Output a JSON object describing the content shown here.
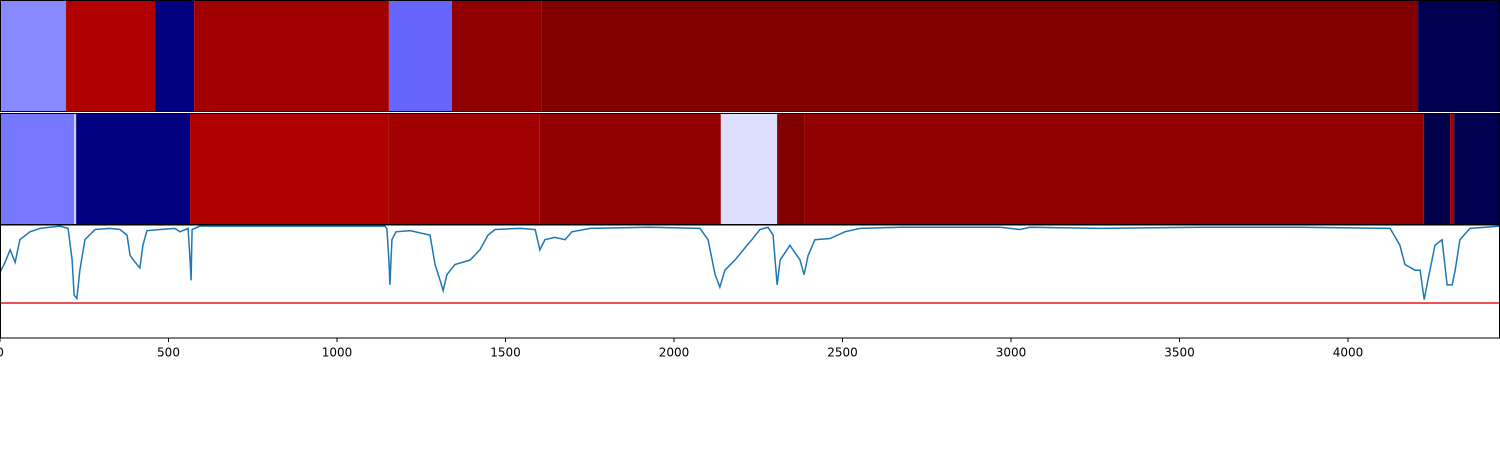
{
  "chart_data": [
    {
      "type": "segments",
      "xlim": [
        0,
        4451
      ],
      "segments": [
        {
          "start": 0,
          "end": 196,
          "color": "#8888ff"
        },
        {
          "start": 196,
          "end": 460,
          "color": "#b00000"
        },
        {
          "start": 460,
          "end": 576,
          "color": "#000080"
        },
        {
          "start": 576,
          "end": 1154,
          "color": "#a00000"
        },
        {
          "start": 1154,
          "end": 1341,
          "color": "#6666ff"
        },
        {
          "start": 1341,
          "end": 1608,
          "color": "#900000"
        },
        {
          "start": 1608,
          "end": 4208,
          "color": "#800000"
        },
        {
          "start": 4208,
          "end": 4451,
          "color": "#000050"
        }
      ]
    },
    {
      "type": "segments",
      "xlim": [
        0,
        4451
      ],
      "segments": [
        {
          "start": 0,
          "end": 220,
          "color": "#7777ff"
        },
        {
          "start": 220,
          "end": 226,
          "color": "#ccccff"
        },
        {
          "start": 226,
          "end": 564,
          "color": "#000080"
        },
        {
          "start": 564,
          "end": 1154,
          "color": "#b00000"
        },
        {
          "start": 1154,
          "end": 1602,
          "color": "#a00000"
        },
        {
          "start": 1602,
          "end": 2139,
          "color": "#900000"
        },
        {
          "start": 2139,
          "end": 2306,
          "color": "#ddddff"
        },
        {
          "start": 2306,
          "end": 2386,
          "color": "#800000"
        },
        {
          "start": 2386,
          "end": 4225,
          "color": "#900000"
        },
        {
          "start": 4225,
          "end": 4303,
          "color": "#00004a"
        },
        {
          "start": 4303,
          "end": 4315,
          "color": "#a00000"
        },
        {
          "start": 4315,
          "end": 4451,
          "color": "#000050"
        }
      ]
    },
    {
      "type": "line",
      "xlim": [
        0,
        4451
      ],
      "ylim": [
        0,
        1
      ],
      "xticks": [
        0,
        500,
        1000,
        1500,
        2000,
        2500,
        3000,
        3500,
        4000
      ],
      "hline": {
        "value": 0.31,
        "color": "#e41a1c"
      },
      "x": [
        0,
        15,
        30,
        45,
        59,
        89,
        119,
        178,
        202,
        214,
        220,
        228,
        237,
        252,
        282,
        326,
        356,
        377,
        386,
        401,
        415,
        424,
        436,
        475,
        519,
        534,
        558,
        564,
        567,
        570,
        593,
        1142,
        1148,
        1154,
        1157,
        1163,
        1175,
        1217,
        1276,
        1291,
        1306,
        1315,
        1326,
        1350,
        1395,
        1424,
        1448,
        1469,
        1543,
        1588,
        1602,
        1617,
        1647,
        1677,
        1697,
        1751,
        1929,
        2077,
        2101,
        2122,
        2136,
        2151,
        2181,
        2211,
        2231,
        2255,
        2279,
        2294,
        2300,
        2306,
        2315,
        2344,
        2374,
        2386,
        2398,
        2418,
        2463,
        2507,
        2552,
        2671,
        2967,
        3027,
        3056,
        3264,
        3561,
        3858,
        4125,
        4154,
        4169,
        4199,
        4214,
        4226,
        4237,
        4258,
        4279,
        4294,
        4309,
        4318,
        4332,
        4362,
        4451
      ],
      "series": [
        {
          "color": "#1f77b4",
          "values": [
            0.58,
            0.67,
            0.78,
            0.67,
            0.87,
            0.94,
            0.97,
            0.99,
            0.97,
            0.69,
            0.38,
            0.35,
            0.6,
            0.87,
            0.96,
            0.97,
            0.96,
            0.91,
            0.73,
            0.67,
            0.62,
            0.82,
            0.95,
            0.96,
            0.97,
            0.94,
            0.97,
            0.69,
            0.51,
            0.96,
            0.99,
            0.99,
            0.97,
            0.69,
            0.47,
            0.87,
            0.94,
            0.95,
            0.91,
            0.65,
            0.51,
            0.42,
            0.56,
            0.65,
            0.69,
            0.78,
            0.91,
            0.96,
            0.97,
            0.96,
            0.78,
            0.87,
            0.89,
            0.87,
            0.94,
            0.97,
            0.98,
            0.97,
            0.87,
            0.56,
            0.45,
            0.6,
            0.69,
            0.8,
            0.87,
            0.96,
            0.98,
            0.91,
            0.69,
            0.47,
            0.69,
            0.82,
            0.69,
            0.56,
            0.73,
            0.87,
            0.88,
            0.94,
            0.97,
            0.98,
            0.98,
            0.96,
            0.98,
            0.97,
            0.98,
            0.98,
            0.97,
            0.82,
            0.65,
            0.6,
            0.6,
            0.34,
            0.51,
            0.82,
            0.87,
            0.47,
            0.47,
            0.6,
            0.87,
            0.97,
            0.99
          ]
        }
      ]
    }
  ]
}
